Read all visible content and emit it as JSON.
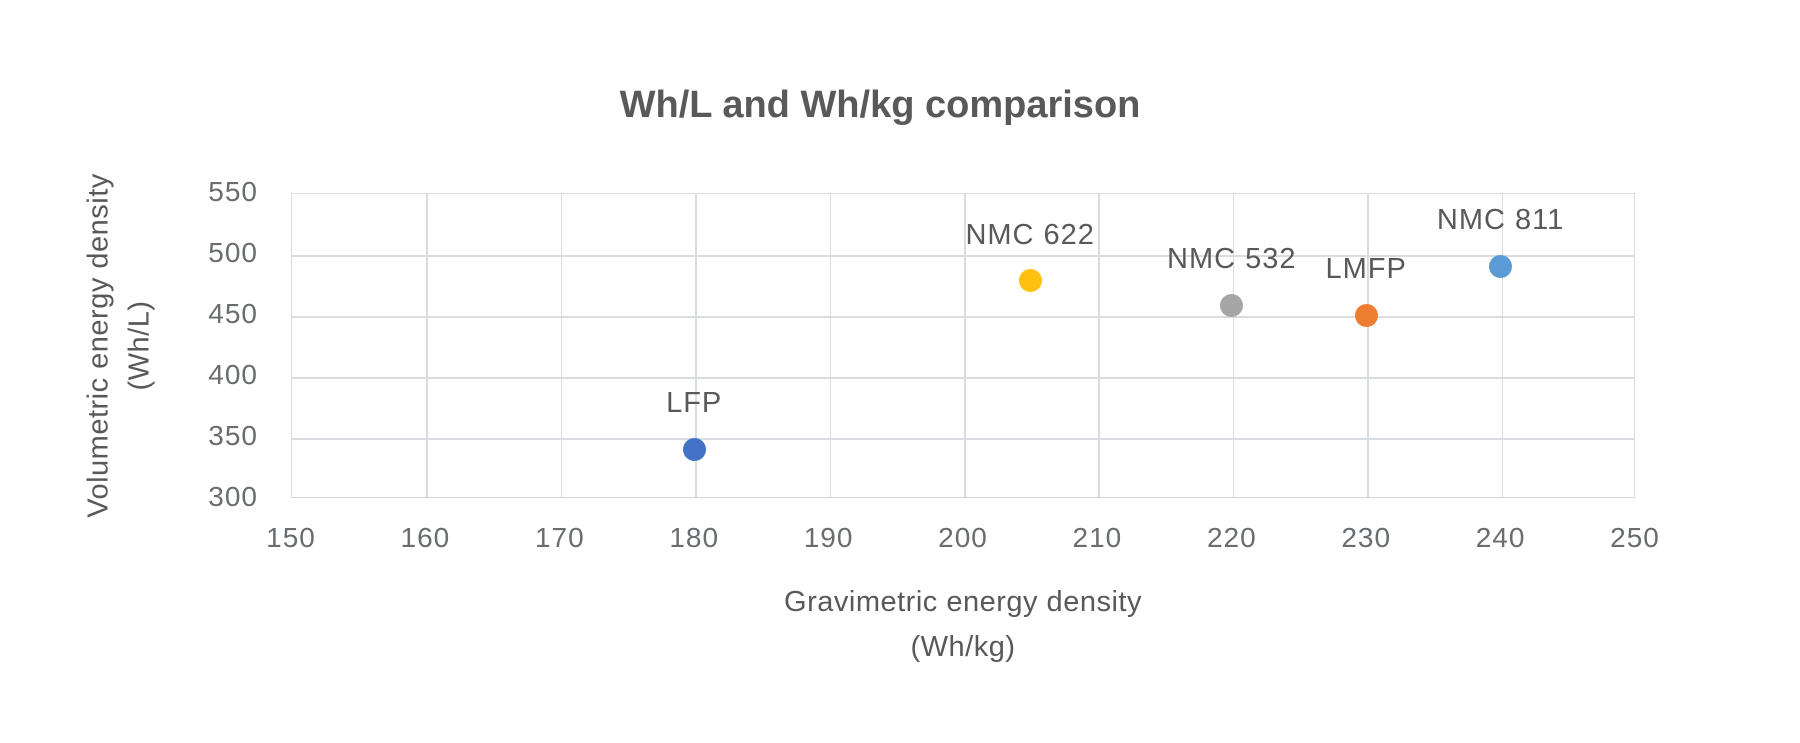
{
  "chart_data": {
    "type": "scatter",
    "title": "Wh/L and Wh/kg comparison",
    "xlabel": "Gravimetric energy density",
    "xlabel_unit": "(Wh/kg)",
    "ylabel": "Volumetric energy density",
    "ylabel_unit": "(Wh/L)",
    "xlim": [
      150,
      250
    ],
    "ylim": [
      300,
      550
    ],
    "x_ticks": [
      150,
      160,
      170,
      180,
      190,
      200,
      210,
      220,
      230,
      240,
      250
    ],
    "y_ticks": [
      300,
      350,
      400,
      450,
      500,
      550
    ],
    "grid": true,
    "legend": "none",
    "points": [
      {
        "label": "LFP",
        "x": 180,
        "y": 340,
        "color": "#4472c4"
      },
      {
        "label": "NMC 622",
        "x": 205,
        "y": 478,
        "color": "#ffc010"
      },
      {
        "label": "NMC 532",
        "x": 220,
        "y": 458,
        "color": "#a6a6a6"
      },
      {
        "label": "LMFP",
        "x": 230,
        "y": 450,
        "color": "#ed7d31"
      },
      {
        "label": "NMC 811",
        "x": 240,
        "y": 490,
        "color": "#5b9bd5"
      }
    ],
    "colors": {
      "grid": "#d9dde1",
      "text": "#595959",
      "tick_text": "#6a6d70",
      "background": "#ffffff"
    }
  }
}
